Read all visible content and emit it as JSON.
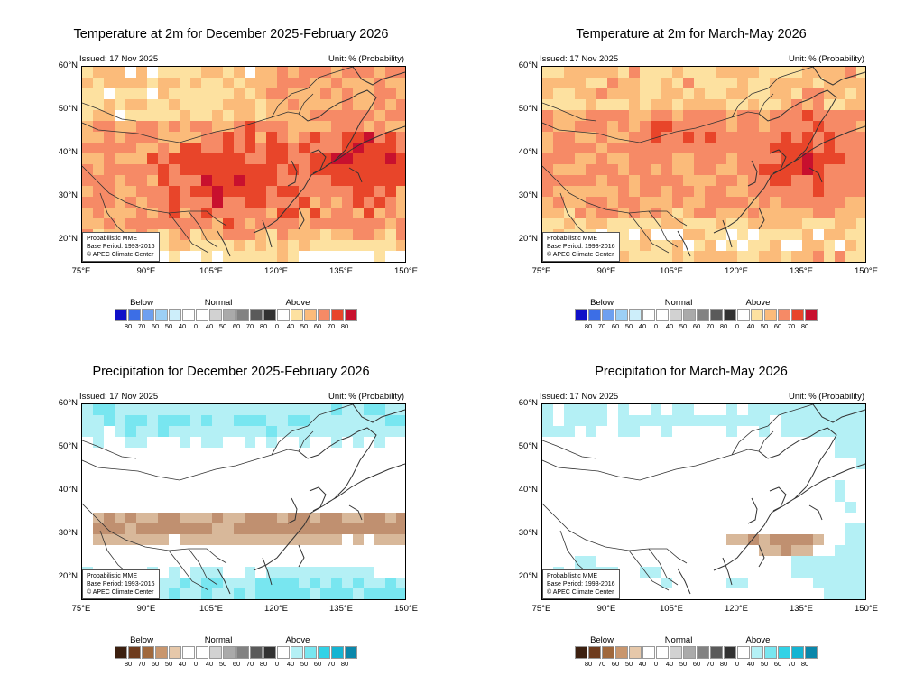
{
  "panels": [
    {
      "id": "temp-djf",
      "title": "Temperature at 2m for December 2025-February 2026",
      "issued": "Issued: 17 Nov 2025",
      "unit": "Unit: % (Probability)",
      "note": [
        "Probabilistic MME",
        "Base Period: 1993-2016",
        "© APEC Climate Center"
      ],
      "variable": "temperature",
      "scheme": "temp"
    },
    {
      "id": "temp-mam",
      "title": "Temperature at 2m for March-May 2026",
      "issued": "Issued: 17 Nov 2025",
      "unit": "Unit: % (Probability)",
      "note": [
        "Probabilistic MME",
        "Base Period: 1993-2016",
        "© APEC Climate Center"
      ],
      "variable": "temperature",
      "scheme": "temp"
    },
    {
      "id": "prec-djf",
      "title": "Precipitation for December 2025-February 2026",
      "issued": "Issued: 17 Nov 2025",
      "unit": "Unit: % (Probability)",
      "note": [
        "Probabilistic MME",
        "Base Period: 1993-2016",
        "© APEC Climate Center"
      ],
      "variable": "precipitation",
      "scheme": "prec"
    },
    {
      "id": "prec-mam",
      "title": "Precipitation for March-May 2026",
      "issued": "Issued: 17 Nov 2025",
      "unit": "Unit: % (Probability)",
      "note": [
        "Probabilistic MME",
        "Base Period: 1993-2016",
        "© APEC Climate Center"
      ],
      "variable": "precipitation",
      "scheme": "prec"
    }
  ],
  "axes": {
    "lat_labels": [
      "60°N",
      "50°N",
      "40°N",
      "30°N",
      "20°N"
    ],
    "lon_labels": [
      "75°E",
      "90°E",
      "105°E",
      "120°E",
      "135°E",
      "150°E"
    ]
  },
  "legend": {
    "groups": [
      "Below",
      "Normal",
      "Above"
    ],
    "numbers": [
      "80",
      "70",
      "60",
      "50",
      "40",
      "0",
      "40",
      "50",
      "60",
      "70",
      "80",
      "0",
      "40",
      "50",
      "60",
      "70",
      "80"
    ],
    "temp_colors": [
      "#1010c8",
      "#3c6ee6",
      "#6ea0f0",
      "#9ccff5",
      "#cdeefa",
      "#ffffff",
      "#ffffff",
      "#d2d2d2",
      "#aaaaaa",
      "#828282",
      "#5a5a5a",
      "#323232",
      "#ffffff",
      "#fde1a0",
      "#fbbb7a",
      "#f68a66",
      "#e8452a",
      "#c8102e"
    ],
    "prec_colors": [
      "#3c2010",
      "#6e3c1e",
      "#a0683c",
      "#c8966e",
      "#e6c8aa",
      "#ffffff",
      "#ffffff",
      "#d2d2d2",
      "#aaaaaa",
      "#828282",
      "#5a5a5a",
      "#323232",
      "#ffffff",
      "#b4f0f5",
      "#78e6f0",
      "#32d2e6",
      "#14b4d2",
      "#0a87aa"
    ]
  },
  "palette": {
    "temp_above_60": "#f68a66",
    "temp_above_70": "#e8452a",
    "temp_above_80": "#c8102e",
    "temp_above_50": "#fbbb7a",
    "temp_above_40": "#fde1a0",
    "prec_above_40": "#b4f0f5",
    "prec_above_50": "#78e6f0",
    "prec_below_40": "#d8b89a",
    "prec_below_50": "#c09070"
  }
}
